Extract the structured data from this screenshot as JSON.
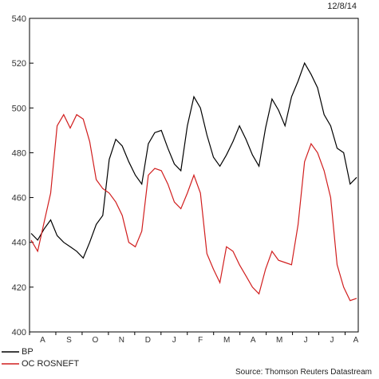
{
  "chart_data": {
    "type": "line",
    "date": "12/8/14",
    "source": "Source: Thomson Reuters Datastream",
    "ylim": [
      400,
      540
    ],
    "yticks": [
      400,
      420,
      440,
      460,
      480,
      500,
      520,
      540
    ],
    "months": [
      "A",
      "S",
      "O",
      "N",
      "D",
      "J",
      "F",
      "M",
      "A",
      "M",
      "J",
      "J",
      "A"
    ],
    "x": [
      "2013-08",
      "2013-08",
      "2013-08",
      "2013-08",
      "2013-09",
      "2013-09",
      "2013-09",
      "2013-09",
      "2013-10",
      "2013-10",
      "2013-10",
      "2013-10",
      "2013-10",
      "2013-11",
      "2013-11",
      "2013-11",
      "2013-11",
      "2013-12",
      "2013-12",
      "2013-12",
      "2013-12",
      "2014-01",
      "2014-01",
      "2014-01",
      "2014-01",
      "2014-02",
      "2014-02",
      "2014-02",
      "2014-02",
      "2014-03",
      "2014-03",
      "2014-03",
      "2014-03",
      "2014-04",
      "2014-04",
      "2014-04",
      "2014-04",
      "2014-05",
      "2014-05",
      "2014-05",
      "2014-05",
      "2014-06",
      "2014-06",
      "2014-06",
      "2014-06",
      "2014-07",
      "2014-07",
      "2014-07",
      "2014-07",
      "2014-08",
      "2014-08"
    ],
    "series": [
      {
        "name": "BP",
        "color": "#000000",
        "values": [
          444,
          441,
          446,
          450,
          443,
          440,
          438,
          436,
          433,
          440,
          448,
          452,
          477,
          486,
          483,
          476,
          470,
          466,
          484,
          489,
          490,
          482,
          475,
          472,
          492,
          505,
          500,
          488,
          478,
          474,
          479,
          485,
          492,
          486,
          479,
          474,
          491,
          504,
          499,
          492,
          505,
          512,
          520,
          515,
          509,
          497,
          492,
          482,
          480,
          466,
          469
        ]
      },
      {
        "name": "OC ROSNEFT",
        "color": "#d11e1e",
        "values": [
          441,
          436,
          449,
          462,
          492,
          497,
          491,
          497,
          495,
          485,
          468,
          464,
          462,
          458,
          452,
          440,
          438,
          445,
          470,
          473,
          472,
          466,
          458,
          455,
          462,
          470,
          462,
          435,
          428,
          422,
          438,
          436,
          430,
          425,
          420,
          417,
          428,
          436,
          432,
          431,
          430,
          448,
          476,
          484,
          480,
          472,
          460,
          430,
          420,
          414,
          415
        ]
      }
    ]
  }
}
